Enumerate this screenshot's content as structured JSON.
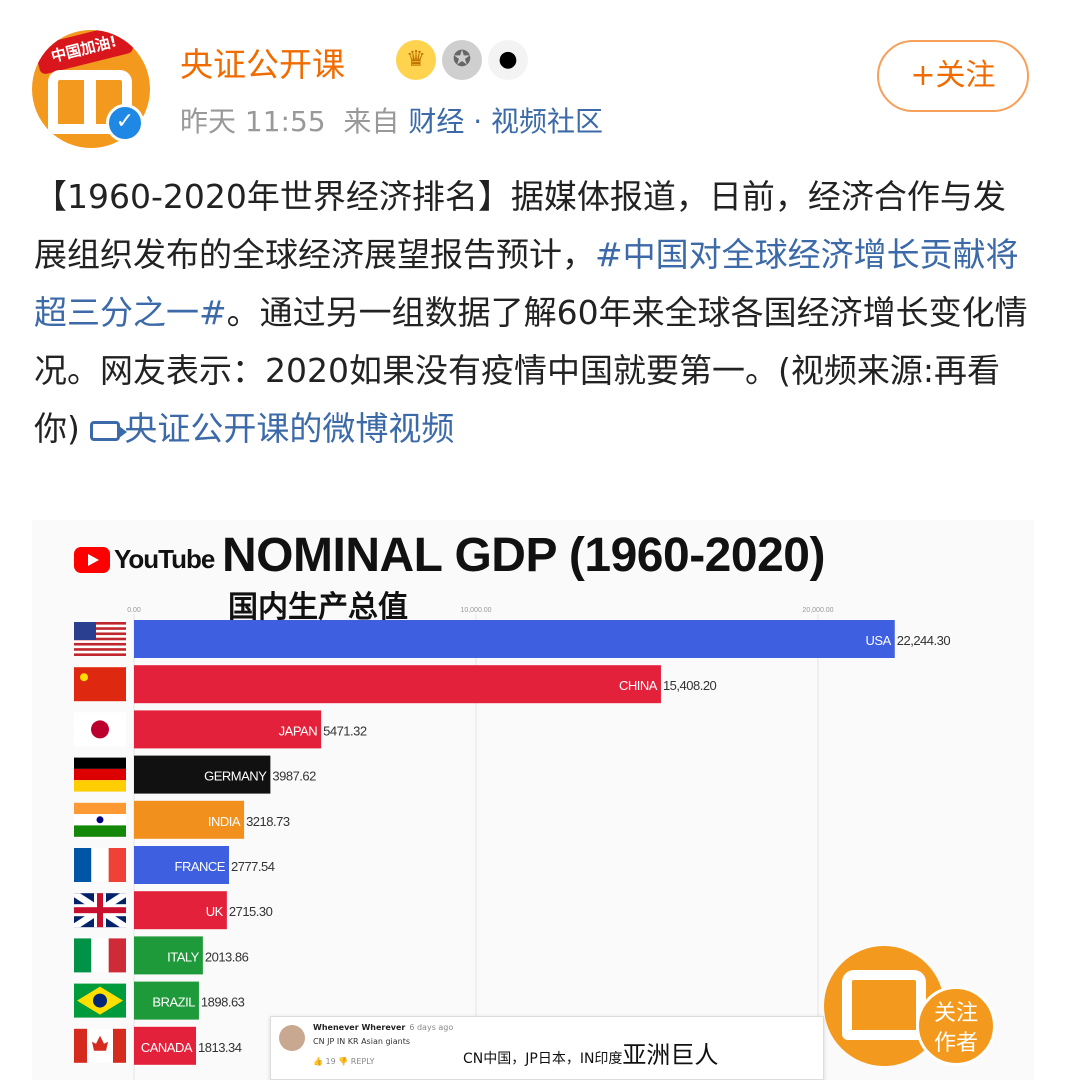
{
  "post": {
    "author": "央证公开课",
    "avatar_ribbon": "中国加油!",
    "badges": [
      "crown-icon",
      "medal-icon",
      "panda-icon"
    ],
    "time": "昨天 11:55",
    "from_label": "来自",
    "source": "财经 · 视频社区",
    "follow_label": "+关注",
    "text_part1": "【1960-2020年世界经济排名】据媒体报道，日前，经济合作与发展组织发布的全球经济展望报告预计，",
    "hashtag": "#中国对全球经济增长贡献将超三分之一#",
    "text_part2": "。通过另一组数据了解60年来全球各国经济增长变化情况。网友表示：2020如果没有疫情中国就要第一。(视频来源:再看你)",
    "video_link": "央证公开课的微博视频"
  },
  "video": {
    "youtube_label": "YouTube",
    "title": "NOMINAL GDP (1960-2020)",
    "subtitle": "国内生产总值"
  },
  "chart_data": {
    "type": "bar",
    "orientation": "horizontal",
    "title": "NOMINAL GDP (1960-2020)",
    "subtitle": "国内生产总值",
    "xlim": [
      0,
      23000
    ],
    "x_ticks": [
      0,
      10000,
      20000
    ],
    "x_tick_labels": [
      "0.00",
      "10,000.00",
      "20,000.00"
    ],
    "grid": true,
    "categories": [
      "USA",
      "CHINA",
      "JAPAN",
      "GERMANY",
      "INDIA",
      "FRANCE",
      "UK",
      "ITALY",
      "BRAZIL",
      "CANADA"
    ],
    "values": [
      22244.3,
      15408.2,
      5471.32,
      3987.62,
      3218.73,
      2777.54,
      2715.3,
      2013.86,
      1898.63,
      1813.34
    ],
    "value_labels": [
      "22,244.30",
      "15,408.20",
      "5471.32",
      "3987.62",
      "3218.73",
      "2777.54",
      "2715.30",
      "2013.86",
      "1898.63",
      "1813.34"
    ],
    "colors": [
      "#3e5fe0",
      "#e3213b",
      "#e3213b",
      "#111111",
      "#f2901e",
      "#3e5fe0",
      "#e3213b",
      "#1e9a3a",
      "#1e9a3a",
      "#e3213b"
    ],
    "flags": [
      "us-flag-icon",
      "china-flag-icon",
      "japan-flag-icon",
      "germany-flag-icon",
      "india-flag-icon",
      "france-flag-icon",
      "uk-flag-icon",
      "italy-flag-icon",
      "brazil-flag-icon",
      "canada-flag-icon"
    ]
  },
  "comment": {
    "user": "Whenever Wherever",
    "time": "6 days ago",
    "text": "CN JP IN KR Asian giants",
    "likes": "19",
    "reply_label": "REPLY",
    "translation_prefix": "CN中国，JP日本，IN印度",
    "translation_big": "亚洲巨人"
  },
  "watermark": {
    "follow_line1": "关注",
    "follow_line2": "作者"
  }
}
